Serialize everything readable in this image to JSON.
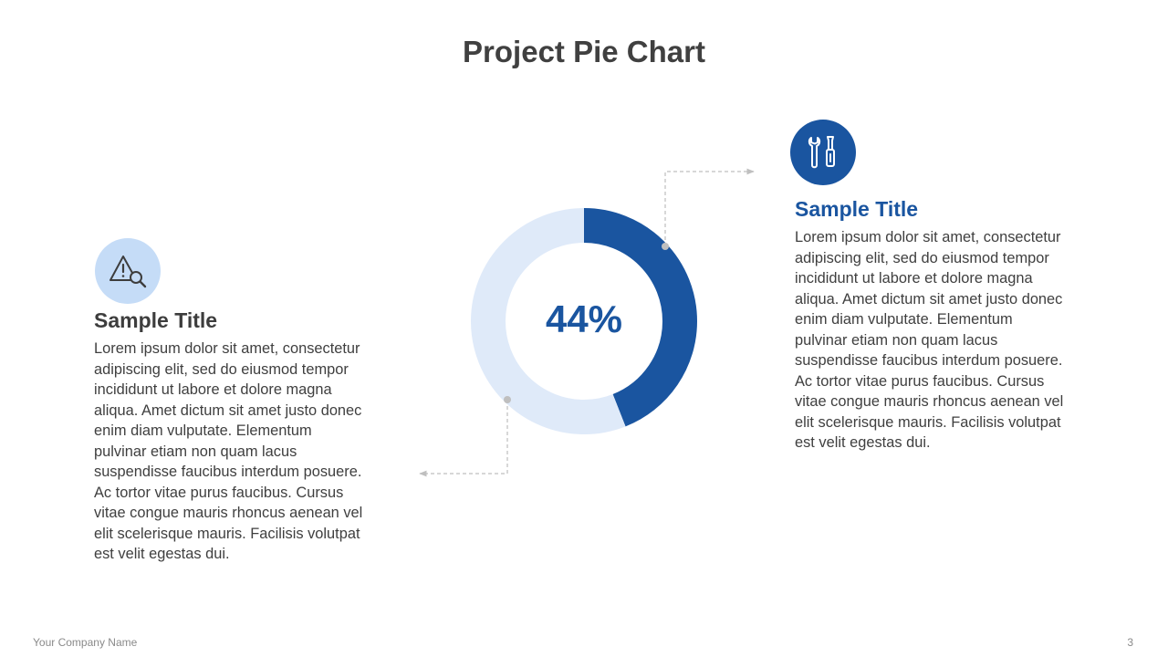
{
  "slide": {
    "title": "Project Pie Chart",
    "footer_company": "Your Company  Name",
    "page_number": "3"
  },
  "colors": {
    "accent": "#1a55a0",
    "track": "#dfeaf9",
    "light_icon_bg": "#c5dcf7",
    "connector": "#bfbfbf"
  },
  "chart_data": {
    "type": "pie",
    "style": "donut",
    "value_label": "44%",
    "slices": [
      {
        "value": 44,
        "color": "#1a55a0"
      },
      {
        "value": 56,
        "color": "#dfeaf9"
      }
    ]
  },
  "left_block": {
    "icon": "warning-magnifier-icon",
    "title": "Sample Title",
    "body": "Lorem ipsum dolor sit amet, consectetur adipiscing elit, sed do eiusmod tempor incididunt ut labore et dolore magna aliqua. Amet dictum sit amet justo donec enim diam vulputate. Elementum pulvinar etiam non quam lacus suspendisse faucibus interdum posuere. Ac tortor vitae purus faucibus. Cursus vitae congue mauris rhoncus aenean vel elit scelerisque mauris. Facilisis volutpat est velit egestas dui."
  },
  "right_block": {
    "icon": "tools-icon",
    "title": "Sample Title",
    "body": "Lorem ipsum dolor sit amet, consectetur adipiscing elit, sed do eiusmod tempor incididunt ut labore et dolore magna aliqua. Amet dictum sit amet justo donec enim diam vulputate. Elementum pulvinar etiam non quam lacus suspendisse faucibus interdum posuere. Ac tortor vitae purus faucibus. Cursus vitae congue mauris rhoncus aenean vel elit scelerisque mauris. Facilisis volutpat est velit egestas dui."
  }
}
